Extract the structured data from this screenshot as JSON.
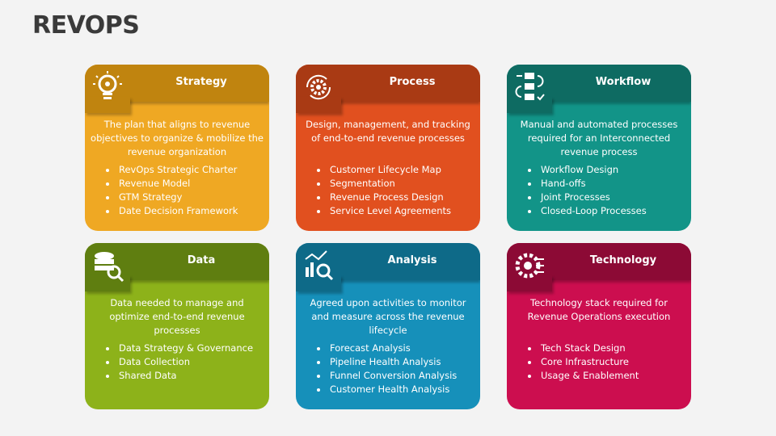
{
  "title": "REVOPS",
  "cards": [
    {
      "title": "Strategy",
      "icon": "lightbulb-gear-icon",
      "header": "#C0840F",
      "body": "#EFA823",
      "desc": "The plan that aligns to revenue objectives to organize & mobilize the revenue organization",
      "items": [
        "RevOps Strategic Charter",
        "Revenue Model",
        "GTM Strategy",
        "Date Decision Framework"
      ]
    },
    {
      "title": "Process",
      "icon": "gears-cycle-icon",
      "header": "#A93A14",
      "body": "#E1501F",
      "desc": "Design, management, and tracking of end-to-end revenue processes",
      "items": [
        "Customer Lifecycle Map",
        "Segmentation",
        "Revenue Process Design",
        "Service Level Agreements"
      ]
    },
    {
      "title": "Workflow",
      "icon": "workflow-icon",
      "header": "#0E6B62",
      "body": "#129488",
      "desc": "Manual and automated processes required for an Interconnected revenue process",
      "items": [
        "Workflow Design",
        "Hand-offs",
        "Joint Processes",
        "Closed-Loop Processes"
      ]
    },
    {
      "title": "Data",
      "icon": "database-search-icon",
      "header": "#5F7E10",
      "body": "#8DB21A",
      "desc": "Data needed to manage and optimize end-to-end revenue processes",
      "items": [
        "Data Strategy & Governance",
        "Data Collection",
        "Shared Data"
      ]
    },
    {
      "title": "Analysis",
      "icon": "chart-magnifier-icon",
      "header": "#0E6A88",
      "body": "#1690BA",
      "desc": "Agreed upon activities to monitor and measure across the revenue lifecycle",
      "items": [
        "Forecast Analysis",
        "Pipeline Health Analysis",
        "Funnel Conversion Analysis",
        "Customer Health Analysis"
      ]
    },
    {
      "title": "Technology",
      "icon": "gear-circuit-icon",
      "header": "#8C0A35",
      "body": "#CC0E4F",
      "desc": "Technology stack required for Revenue Operations execution",
      "items": [
        "Tech Stack Design",
        "Core Infrastructure",
        "Usage & Enablement"
      ]
    }
  ]
}
